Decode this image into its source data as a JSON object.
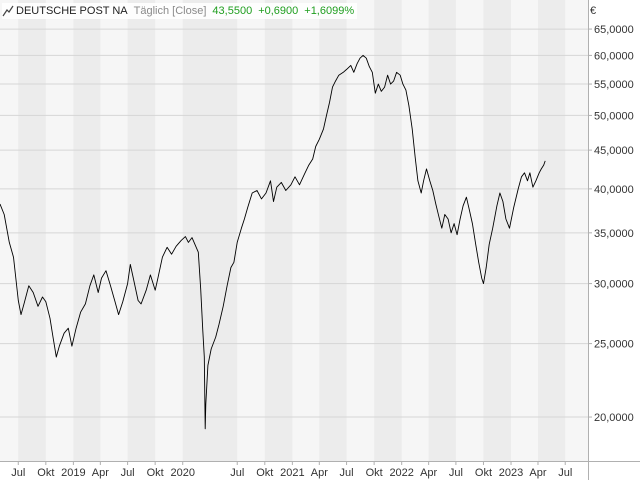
{
  "legend": {
    "icon": "line-chart-icon",
    "name": "DEUTSCHE POST NA",
    "mode": "Täglich [Close]",
    "last": "43,5500",
    "change": "+0,6900",
    "change_pct": "+1,6099%",
    "positive_color": "#1f9e1f"
  },
  "chart_data": {
    "type": "line",
    "title": "DEUTSCHE POST NA",
    "subtitle": "Täglich [Close]",
    "y_unit_label": "€",
    "y_scale": "log",
    "ylim": [
      17.5,
      71.0
    ],
    "y_ticks": [
      20,
      25,
      30,
      35,
      40,
      45,
      50,
      55,
      60,
      65
    ],
    "y_tick_labels": [
      "20,0000",
      "25,0000",
      "30,0000",
      "35,0000",
      "40,0000",
      "45,0000",
      "50,0000",
      "55,0000",
      "60,0000",
      "65,0000"
    ],
    "xlim": [
      "2018-05-01",
      "2023-09-15"
    ],
    "x_ticks": [
      {
        "label": "Jul",
        "date": "2018-07-01"
      },
      {
        "label": "Okt",
        "date": "2018-10-01"
      },
      {
        "label": "2019",
        "date": "2019-01-01"
      },
      {
        "label": "Apr",
        "date": "2019-04-01"
      },
      {
        "label": "Jul",
        "date": "2019-07-01"
      },
      {
        "label": "Okt",
        "date": "2019-10-01"
      },
      {
        "label": "2020",
        "date": "2020-01-01"
      },
      {
        "label": "Jul",
        "date": "2020-07-01"
      },
      {
        "label": "Okt",
        "date": "2020-10-01"
      },
      {
        "label": "2021",
        "date": "2021-01-01"
      },
      {
        "label": "Apr",
        "date": "2021-04-01"
      },
      {
        "label": "Jul",
        "date": "2021-07-01"
      },
      {
        "label": "Okt",
        "date": "2021-10-01"
      },
      {
        "label": "2022",
        "date": "2022-01-01"
      },
      {
        "label": "Apr",
        "date": "2022-04-01"
      },
      {
        "label": "Jul",
        "date": "2022-07-01"
      },
      {
        "label": "Okt",
        "date": "2022-10-01"
      },
      {
        "label": "2023",
        "date": "2023-01-01"
      },
      {
        "label": "Apr",
        "date": "2023-04-01"
      },
      {
        "label": "Jul",
        "date": "2023-07-01"
      }
    ],
    "grid": true,
    "line_color": "#000000",
    "series": [
      {
        "name": "DEUTSCHE POST NA",
        "points": [
          [
            "2018-05-01",
            38.2
          ],
          [
            "2018-05-15",
            37.0
          ],
          [
            "2018-06-01",
            34.0
          ],
          [
            "2018-06-15",
            32.5
          ],
          [
            "2018-07-01",
            28.5
          ],
          [
            "2018-07-10",
            27.3
          ],
          [
            "2018-07-20",
            28.2
          ],
          [
            "2018-08-05",
            29.8
          ],
          [
            "2018-08-20",
            29.2
          ],
          [
            "2018-09-05",
            28.0
          ],
          [
            "2018-09-20",
            28.8
          ],
          [
            "2018-10-01",
            28.4
          ],
          [
            "2018-10-15",
            27.0
          ],
          [
            "2018-10-25",
            25.5
          ],
          [
            "2018-11-05",
            24.0
          ],
          [
            "2018-11-15",
            24.8
          ],
          [
            "2018-12-01",
            25.8
          ],
          [
            "2018-12-15",
            26.2
          ],
          [
            "2018-12-27",
            24.8
          ],
          [
            "2019-01-10",
            26.2
          ],
          [
            "2019-01-25",
            27.5
          ],
          [
            "2019-02-10",
            28.2
          ],
          [
            "2019-02-25",
            29.8
          ],
          [
            "2019-03-10",
            30.8
          ],
          [
            "2019-03-25",
            29.2
          ],
          [
            "2019-04-05",
            30.5
          ],
          [
            "2019-04-20",
            31.2
          ],
          [
            "2019-05-05",
            29.8
          ],
          [
            "2019-05-20",
            28.4
          ],
          [
            "2019-06-01",
            27.3
          ],
          [
            "2019-06-15",
            28.4
          ],
          [
            "2019-07-01",
            30.0
          ],
          [
            "2019-07-10",
            31.8
          ],
          [
            "2019-07-20",
            30.5
          ],
          [
            "2019-08-05",
            28.5
          ],
          [
            "2019-08-15",
            28.2
          ],
          [
            "2019-09-01",
            29.4
          ],
          [
            "2019-09-15",
            30.8
          ],
          [
            "2019-10-01",
            29.4
          ],
          [
            "2019-10-10",
            30.5
          ],
          [
            "2019-10-25",
            32.5
          ],
          [
            "2019-11-10",
            33.5
          ],
          [
            "2019-11-25",
            32.8
          ],
          [
            "2019-12-10",
            33.6
          ],
          [
            "2019-12-27",
            34.2
          ],
          [
            "2020-01-10",
            34.6
          ],
          [
            "2020-01-20",
            34.0
          ],
          [
            "2020-02-01",
            34.5
          ],
          [
            "2020-02-15",
            33.5
          ],
          [
            "2020-02-22",
            33.0
          ],
          [
            "2020-03-01",
            29.5
          ],
          [
            "2020-03-08",
            26.0
          ],
          [
            "2020-03-13",
            24.0
          ],
          [
            "2020-03-16",
            19.3
          ],
          [
            "2020-03-18",
            20.8
          ],
          [
            "2020-03-25",
            23.4
          ],
          [
            "2020-04-05",
            24.6
          ],
          [
            "2020-04-20",
            25.5
          ],
          [
            "2020-05-01",
            26.5
          ],
          [
            "2020-05-15",
            28.0
          ],
          [
            "2020-05-28",
            29.8
          ],
          [
            "2020-06-10",
            31.5
          ],
          [
            "2020-06-20",
            32.0
          ],
          [
            "2020-07-01",
            34.0
          ],
          [
            "2020-07-15",
            35.5
          ],
          [
            "2020-07-25",
            36.5
          ],
          [
            "2020-08-05",
            37.8
          ],
          [
            "2020-08-20",
            39.5
          ],
          [
            "2020-09-05",
            39.8
          ],
          [
            "2020-09-20",
            38.8
          ],
          [
            "2020-10-05",
            39.5
          ],
          [
            "2020-10-20",
            41.0
          ],
          [
            "2020-10-30",
            38.5
          ],
          [
            "2020-11-10",
            40.2
          ],
          [
            "2020-11-25",
            40.8
          ],
          [
            "2020-12-10",
            39.8
          ],
          [
            "2020-12-27",
            40.5
          ],
          [
            "2021-01-10",
            41.5
          ],
          [
            "2021-01-25",
            40.5
          ],
          [
            "2021-02-10",
            41.8
          ],
          [
            "2021-02-25",
            43.0
          ],
          [
            "2021-03-10",
            43.8
          ],
          [
            "2021-03-20",
            45.5
          ],
          [
            "2021-04-01",
            46.5
          ],
          [
            "2021-04-15",
            48.0
          ],
          [
            "2021-04-25",
            50.0
          ],
          [
            "2021-05-05",
            52.0
          ],
          [
            "2021-05-15",
            54.5
          ],
          [
            "2021-05-25",
            55.5
          ],
          [
            "2021-06-05",
            56.5
          ],
          [
            "2021-06-20",
            57.0
          ],
          [
            "2021-07-01",
            57.5
          ],
          [
            "2021-07-15",
            58.2
          ],
          [
            "2021-07-25",
            57.0
          ],
          [
            "2021-08-05",
            58.5
          ],
          [
            "2021-08-15",
            59.5
          ],
          [
            "2021-08-25",
            60.0
          ],
          [
            "2021-09-05",
            59.5
          ],
          [
            "2021-09-15",
            58.0
          ],
          [
            "2021-09-25",
            57.0
          ],
          [
            "2021-10-05",
            53.5
          ],
          [
            "2021-10-15",
            55.0
          ],
          [
            "2021-10-25",
            53.8
          ],
          [
            "2021-11-05",
            54.5
          ],
          [
            "2021-11-15",
            56.5
          ],
          [
            "2021-11-25",
            55.0
          ],
          [
            "2021-12-05",
            55.5
          ],
          [
            "2021-12-15",
            57.0
          ],
          [
            "2021-12-27",
            56.5
          ],
          [
            "2022-01-05",
            55.0
          ],
          [
            "2022-01-15",
            54.0
          ],
          [
            "2022-01-25",
            51.5
          ],
          [
            "2022-02-05",
            48.0
          ],
          [
            "2022-02-15",
            44.0
          ],
          [
            "2022-02-24",
            41.0
          ],
          [
            "2022-03-07",
            39.5
          ],
          [
            "2022-03-15",
            41.0
          ],
          [
            "2022-03-25",
            42.5
          ],
          [
            "2022-04-05",
            41.0
          ],
          [
            "2022-04-15",
            39.8
          ],
          [
            "2022-04-25",
            38.2
          ],
          [
            "2022-05-05",
            36.8
          ],
          [
            "2022-05-15",
            35.5
          ],
          [
            "2022-05-25",
            37.0
          ],
          [
            "2022-06-05",
            36.5
          ],
          [
            "2022-06-15",
            35.0
          ],
          [
            "2022-06-25",
            36.0
          ],
          [
            "2022-07-05",
            34.8
          ],
          [
            "2022-07-15",
            36.5
          ],
          [
            "2022-07-25",
            38.0
          ],
          [
            "2022-08-05",
            39.0
          ],
          [
            "2022-08-15",
            37.5
          ],
          [
            "2022-08-25",
            36.0
          ],
          [
            "2022-09-05",
            33.8
          ],
          [
            "2022-09-15",
            32.0
          ],
          [
            "2022-09-25",
            30.5
          ],
          [
            "2022-10-01",
            30.0
          ],
          [
            "2022-10-10",
            31.5
          ],
          [
            "2022-10-20",
            33.8
          ],
          [
            "2022-11-01",
            35.5
          ],
          [
            "2022-11-15",
            38.0
          ],
          [
            "2022-11-25",
            39.5
          ],
          [
            "2022-12-05",
            38.5
          ],
          [
            "2022-12-15",
            36.5
          ],
          [
            "2022-12-27",
            35.5
          ],
          [
            "2023-01-10",
            37.8
          ],
          [
            "2023-01-25",
            40.0
          ],
          [
            "2023-02-05",
            41.5
          ],
          [
            "2023-02-15",
            42.0
          ],
          [
            "2023-02-25",
            41.0
          ],
          [
            "2023-03-05",
            42.0
          ],
          [
            "2023-03-15",
            40.2
          ],
          [
            "2023-03-25",
            41.0
          ],
          [
            "2023-04-05",
            42.0
          ],
          [
            "2023-04-12",
            42.5
          ],
          [
            "2023-04-20",
            43.0
          ],
          [
            "2023-04-25",
            43.55
          ]
        ]
      }
    ]
  }
}
